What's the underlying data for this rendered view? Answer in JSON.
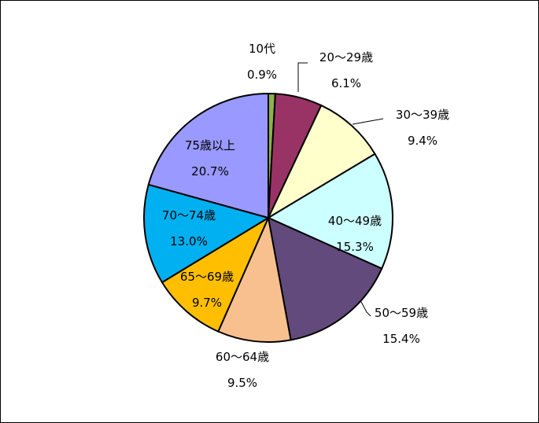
{
  "chart_data": {
    "type": "pie",
    "title": "",
    "start": "12 o'clock",
    "direction": "clockwise",
    "slices": [
      {
        "label": "10代",
        "value": 0.9,
        "value_label": "0.9%",
        "color": "#8db14c"
      },
      {
        "label": "20～29歳",
        "value": 6.1,
        "value_label": "6.1%",
        "color": "#993366"
      },
      {
        "label": "30～39歳",
        "value": 9.4,
        "value_label": "9.4%",
        "color": "#ffffcc"
      },
      {
        "label": "40～49歳",
        "value": 15.3,
        "value_label": "15.3%",
        "color": "#ccffff"
      },
      {
        "label": "50～59歳",
        "value": 15.4,
        "value_label": "15.4%",
        "color": "#624a7c"
      },
      {
        "label": "60～64歳",
        "value": 9.5,
        "value_label": "9.5%",
        "color": "#f9c08f"
      },
      {
        "label": "65～69歳",
        "value": 9.7,
        "value_label": "9.7%",
        "color": "#ffbf00"
      },
      {
        "label": "70～74歳",
        "value": 13.0,
        "value_label": "13.0%",
        "color": "#00b0f0"
      },
      {
        "label": "75歳以上",
        "value": 20.7,
        "value_label": "20.7%",
        "color": "#9999ff"
      }
    ]
  }
}
